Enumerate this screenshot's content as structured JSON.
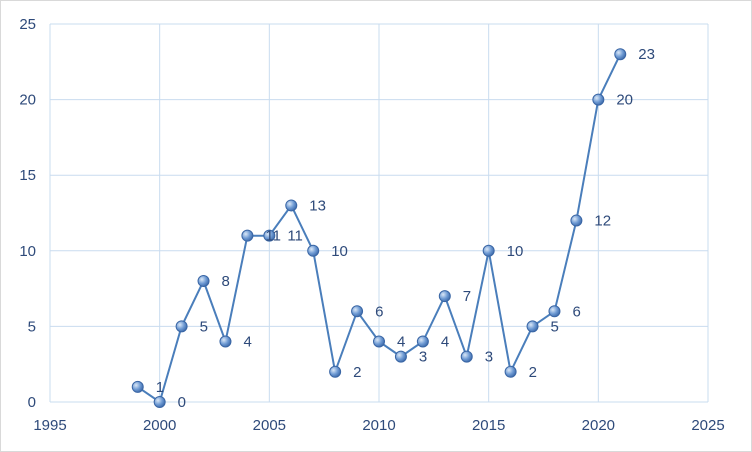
{
  "chart_data": {
    "type": "line",
    "title": "",
    "xlabel": "",
    "ylabel": "",
    "xlim": [
      1995,
      2025
    ],
    "ylim": [
      0,
      25
    ],
    "x_ticks": [
      1995,
      2000,
      2005,
      2010,
      2015,
      2020,
      2025
    ],
    "y_ticks": [
      0,
      5,
      10,
      15,
      20,
      25
    ],
    "grid": true,
    "legend": "none",
    "colors": {
      "line": "#4a7ebb",
      "marker": "#4f81bd",
      "text": "#2e4a7a",
      "grid": "#c9dcef"
    },
    "series": [
      {
        "x": [
          1999,
          2000,
          2001,
          2002,
          2003,
          2004,
          2005,
          2006,
          2007,
          2008,
          2009,
          2010,
          2011,
          2012,
          2013,
          2014,
          2015,
          2016,
          2017,
          2018,
          2019,
          2020,
          2021
        ],
        "values": [
          1,
          0,
          5,
          8,
          4,
          11,
          11,
          13,
          10,
          2,
          6,
          4,
          3,
          4,
          7,
          3,
          10,
          2,
          5,
          6,
          12,
          20,
          23
        ]
      }
    ]
  }
}
